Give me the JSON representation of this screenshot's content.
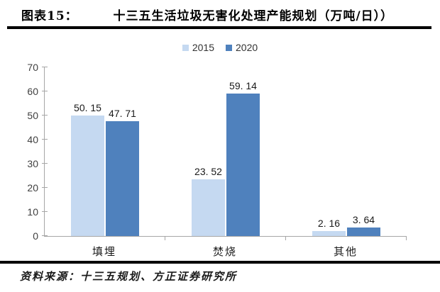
{
  "header": {
    "figure_label": "图表15：",
    "title": "十三五生活垃圾无害化处理产能规划（万吨/日））"
  },
  "footer": {
    "source": "资料来源：十三五规划、方正证券研究所"
  },
  "chart_data": {
    "type": "bar",
    "title": "十三五生活垃圾无害化处理产能规划（万吨/日）",
    "categories": [
      "填埋",
      "焚烧",
      "其他"
    ],
    "series": [
      {
        "name": "2015",
        "color": "#c5d9f1",
        "values": [
          50.15,
          23.52,
          2.16
        ],
        "labels": [
          "50. 15",
          "23. 52",
          "2. 16"
        ]
      },
      {
        "name": "2020",
        "color": "#4f81bd",
        "values": [
          47.71,
          59.14,
          3.64
        ],
        "labels": [
          "47. 71",
          "59. 14",
          "3. 64"
        ]
      }
    ],
    "xlabel": "",
    "ylabel": "",
    "ylim": [
      0,
      70
    ],
    "ytick_step": 10,
    "grid": false,
    "legend_position": "top",
    "axis_color": "#a6a6a6"
  }
}
